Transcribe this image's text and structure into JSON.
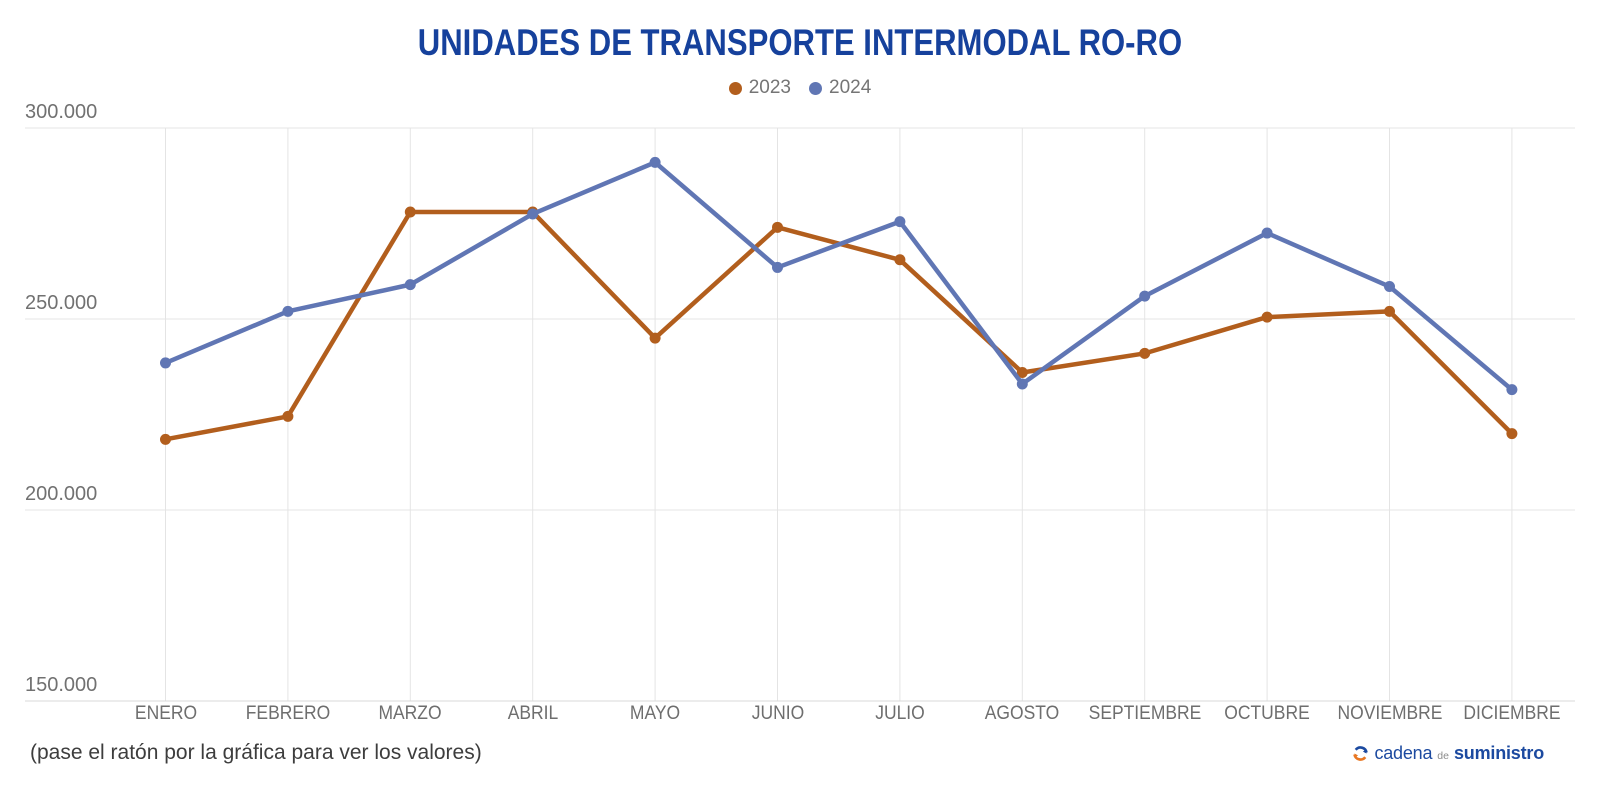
{
  "title": "UNIDADES DE TRANSPORTE INTERMODAL RO-RO",
  "title_color": "#16419c",
  "legend": [
    {
      "label": "2023",
      "color": "#b25e1d"
    },
    {
      "label": "2024",
      "color": "#6076b4"
    }
  ],
  "chart_data": {
    "type": "line",
    "title": "UNIDADES DE TRANSPORTE INTERMODAL RO-RO",
    "categories": [
      "ENERO",
      "FEBRERO",
      "MARZO",
      "ABRIL",
      "MAYO",
      "JUNIO",
      "JULIO",
      "AGOSTO",
      "SEPTIEMBRE",
      "OCTUBRE",
      "NOVIEMBRE",
      "DICIEMBRE"
    ],
    "series": [
      {
        "name": "2023",
        "color": "#b25e1d",
        "values": [
          218500,
          224500,
          278000,
          278000,
          245000,
          274000,
          265500,
          236000,
          241000,
          250500,
          252000,
          220000
        ]
      },
      {
        "name": "2024",
        "color": "#6076b4",
        "values": [
          238500,
          252000,
          259000,
          277500,
          291000,
          263500,
          275500,
          233000,
          256000,
          272500,
          258500,
          231500
        ]
      }
    ],
    "y_ticks": [
      "300.000",
      "250.000",
      "200.000",
      "150.000"
    ],
    "y_tick_values": [
      300000,
      250000,
      200000,
      150000
    ],
    "ylim": [
      150000,
      305000
    ],
    "xlabel": "",
    "ylabel": "",
    "grid": true,
    "grid_color": "#e4e4e4",
    "axis_color": "#d8d8d8",
    "legend_position": "top"
  },
  "footer": {
    "hint": "(pase el ratón por la gráfica para ver los valores)",
    "brand": {
      "part1": "cadena",
      "part2": "de",
      "part3": "suministro"
    }
  }
}
